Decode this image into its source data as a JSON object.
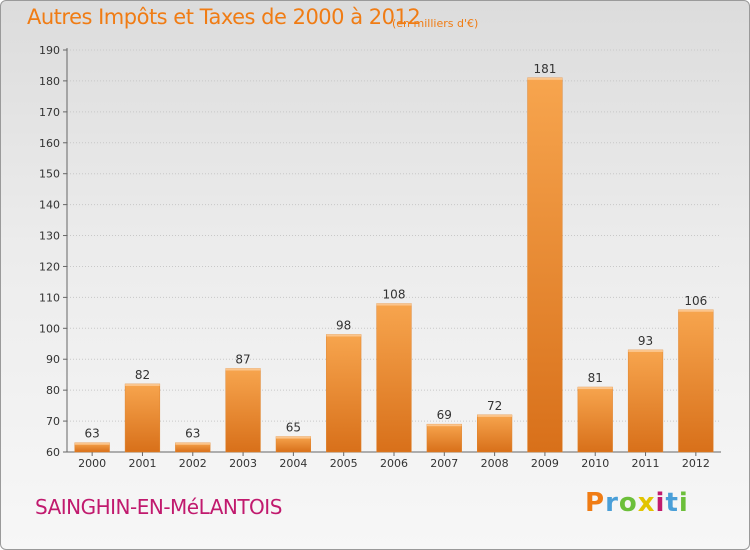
{
  "header": {
    "title": "Autres Impôts et Taxes de 2000 à 2012",
    "subtitle": "(en milliers d'€)"
  },
  "footer": {
    "commune": "SAINGHIN-EN-MéLANTOIS",
    "logo": "Proxiti",
    "logo_colors": [
      "#f07c14",
      "#4a9fd8",
      "#6cbf3a",
      "#e2c400",
      "#c11a6e",
      "#4a9fd8",
      "#6cbf3a"
    ]
  },
  "chart_data": {
    "type": "bar",
    "categories": [
      "2000",
      "2001",
      "2002",
      "2003",
      "2004",
      "2005",
      "2006",
      "2007",
      "2008",
      "2009",
      "2010",
      "2011",
      "2012"
    ],
    "values": [
      63,
      82,
      63,
      87,
      65,
      98,
      108,
      69,
      72,
      181,
      81,
      93,
      106
    ],
    "ylim": [
      60,
      190
    ],
    "yticks": [
      60,
      70,
      80,
      90,
      100,
      110,
      120,
      130,
      140,
      150,
      160,
      170,
      180,
      190
    ],
    "grid": true,
    "bar_color": "#f08a2c",
    "accent_color": "#f07c14"
  }
}
